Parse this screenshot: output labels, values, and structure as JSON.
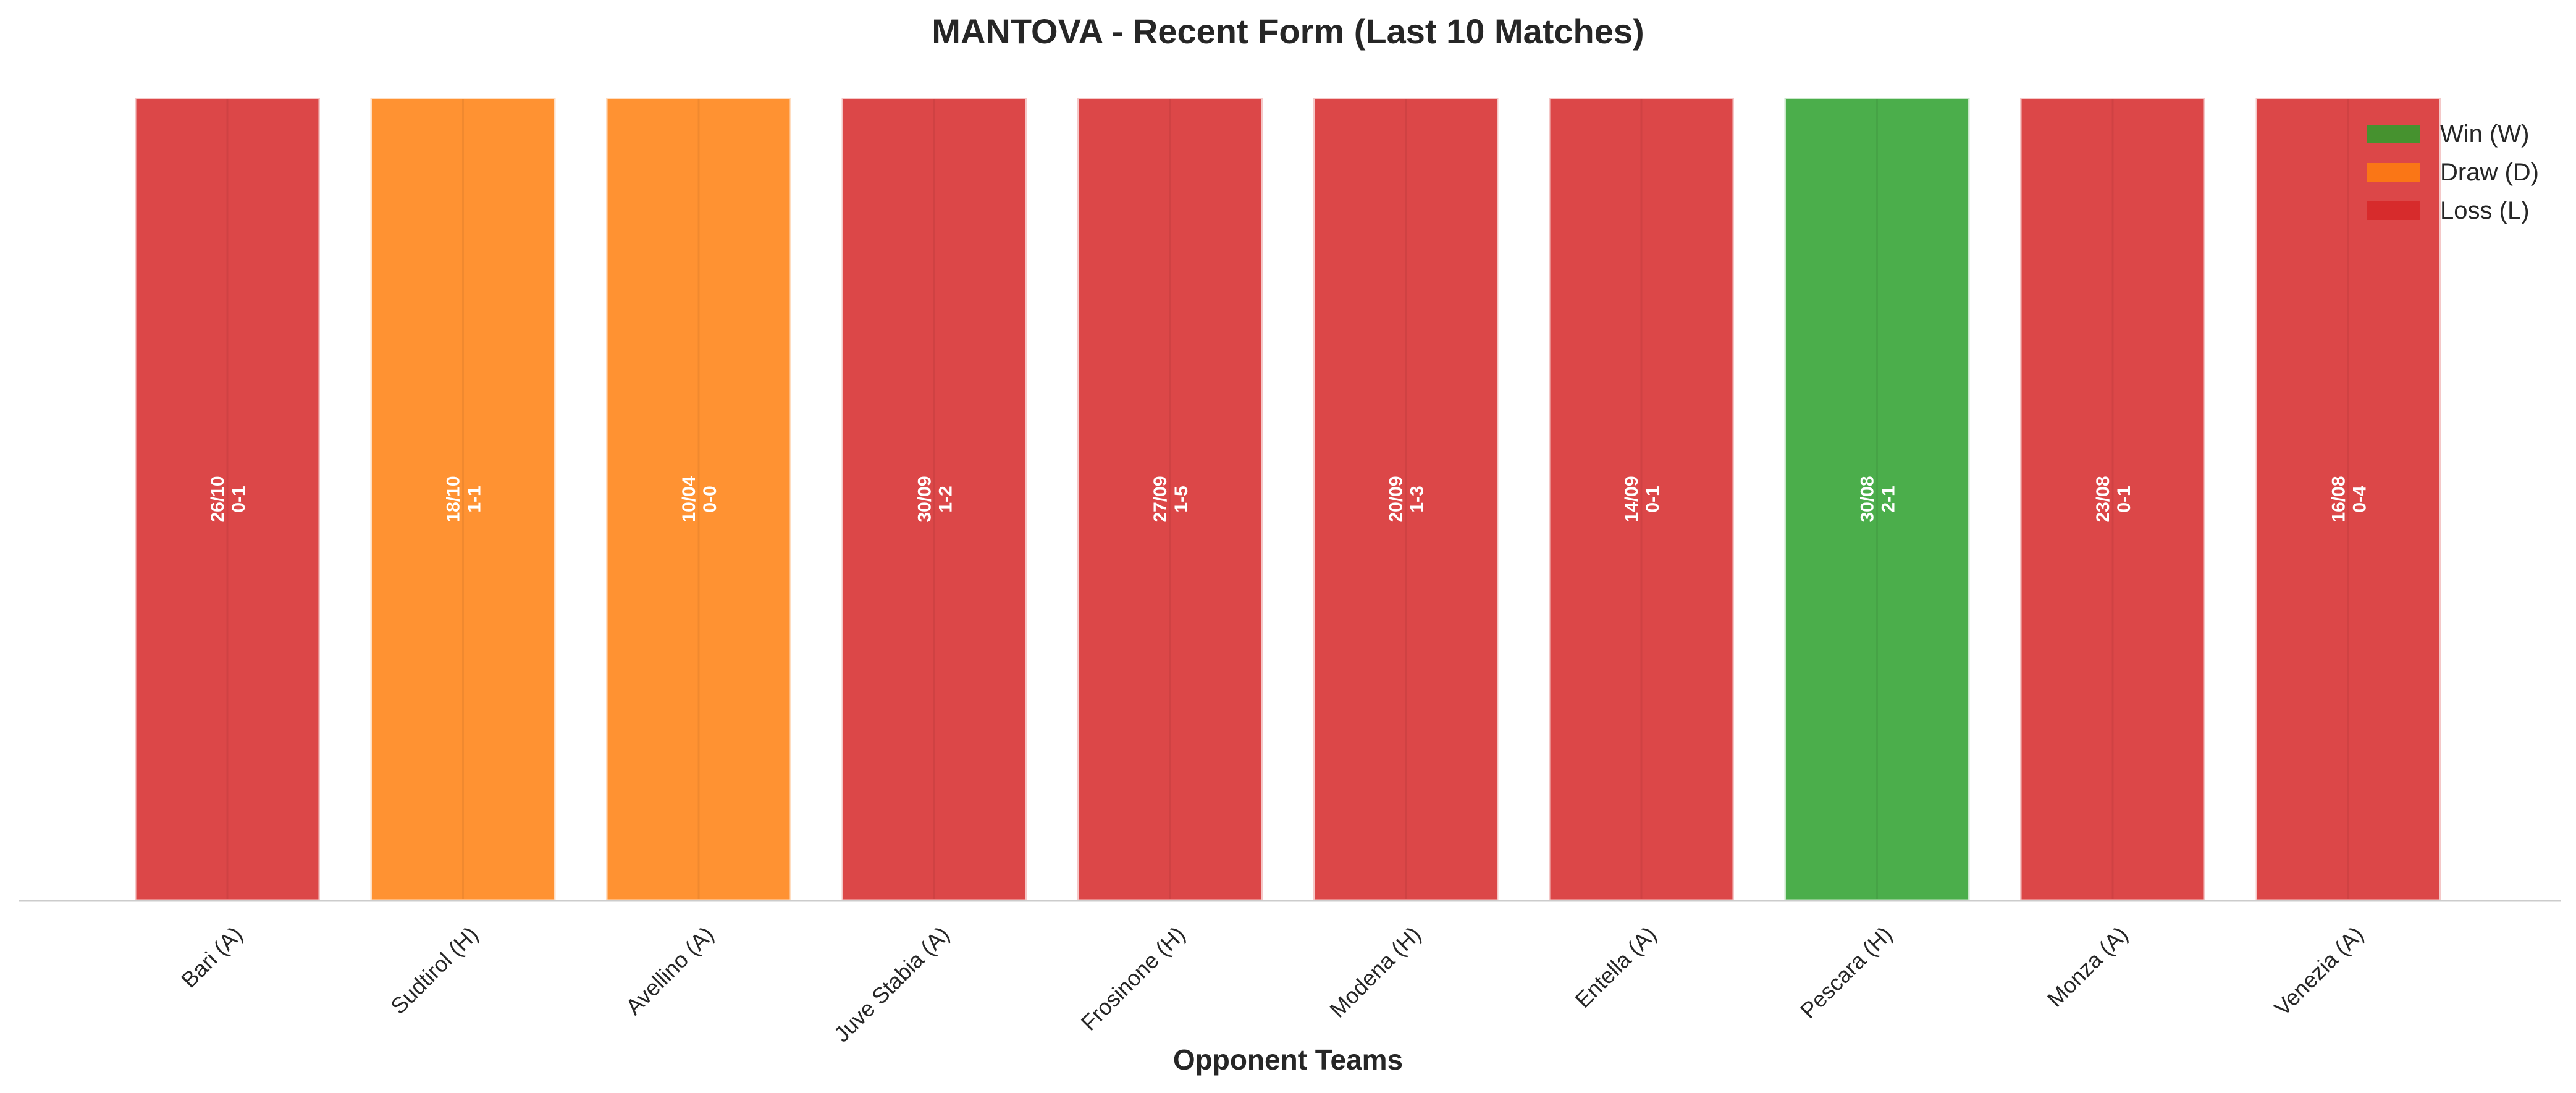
{
  "chart_data": {
    "type": "bar",
    "title": "MANTOVA - Recent Form (Last 10 Matches)",
    "xlabel": "Opponent Teams",
    "ylabel": "",
    "categories": [
      "Bari (A)",
      "Sudtirol (H)",
      "Avellino (A)",
      "Juve Stabia (A)",
      "Frosinone (H)",
      "Modena (H)",
      "Entella (A)",
      "Pescara (H)",
      "Monza (A)",
      "Venezia (A)"
    ],
    "values": [
      1,
      1,
      1,
      1,
      1,
      1,
      1,
      1,
      1,
      1
    ],
    "results": [
      "L",
      "D",
      "D",
      "L",
      "L",
      "L",
      "L",
      "W",
      "L",
      "L"
    ],
    "dates": [
      "26/10",
      "18/10",
      "10/04",
      "30/09",
      "27/09",
      "20/09",
      "14/09",
      "30/08",
      "23/08",
      "16/08"
    ],
    "scores": [
      "0-1",
      "1-1",
      "0-0",
      "1-2",
      "1-5",
      "1-3",
      "0-1",
      "2-1",
      "0-1",
      "0-4"
    ],
    "ylim": [
      0,
      1
    ],
    "grid": false,
    "legend_position": "top-right",
    "legend": [
      {
        "key": "W",
        "label": "Win (W)",
        "color": "#2ca02c"
      },
      {
        "key": "D",
        "label": "Draw (D)",
        "color": "#ff7f0e"
      },
      {
        "key": "L",
        "label": "Loss (L)",
        "color": "#d62728"
      }
    ]
  }
}
